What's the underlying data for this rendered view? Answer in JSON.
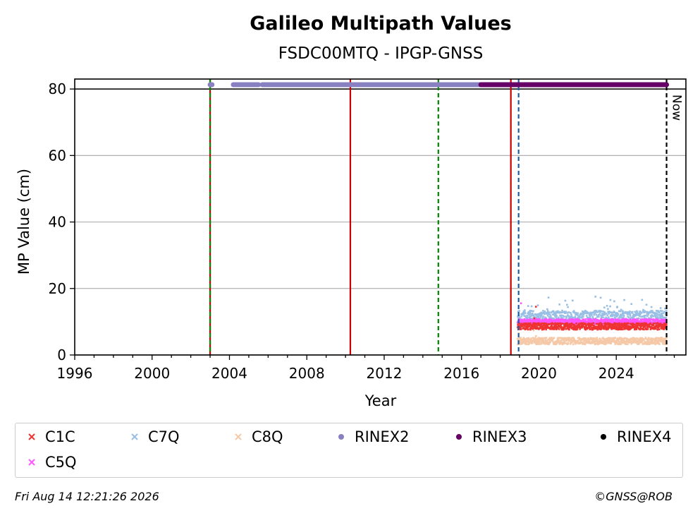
{
  "chart_data": {
    "type": "scatter",
    "title": "Galileo Multipath Values",
    "subtitle": "FSDC00MTQ - IPGP-GNSS",
    "xlabel": "Year",
    "ylabel": "MP Value (cm)",
    "xlim": [
      1996,
      2027.6
    ],
    "ylim": [
      0,
      83
    ],
    "x_ticks": [
      "1996",
      "2000",
      "2004",
      "2008",
      "2012",
      "2016",
      "2020",
      "2024"
    ],
    "y_ticks": [
      "0",
      "20",
      "40",
      "60",
      "80"
    ],
    "grid": "horizontal",
    "legend_position": "bottom",
    "series": [
      {
        "name": "C1C",
        "color": "#ee3333",
        "marker": "x",
        "x_range": [
          2018.9,
          2026.6
        ],
        "y_typical": 8.6,
        "y_spread": 1.0
      },
      {
        "name": "C7Q",
        "color": "#99bfe4",
        "marker": "x",
        "x_range": [
          2018.9,
          2026.6
        ],
        "y_typical": 11.5,
        "y_spread": 1.8
      },
      {
        "name": "C8Q",
        "color": "#f5c9a8",
        "marker": "x",
        "x_range": [
          2018.9,
          2026.6
        ],
        "y_typical": 4.2,
        "y_spread": 1.0
      },
      {
        "name": "C5Q",
        "color": "#ff55ff",
        "marker": "x",
        "x_range": [
          2018.9,
          2026.6
        ],
        "y_typical": 10.0,
        "y_spread": 0.8
      },
      {
        "name": "RINEX2",
        "color": "#8880c0",
        "marker": "o",
        "y": 81.3,
        "segments": [
          [
            2003.0,
            2003.1
          ],
          [
            2004.2,
            2005.5
          ],
          [
            2005.7,
            2017.0
          ]
        ]
      },
      {
        "name": "RINEX3",
        "color": "#660066",
        "marker": "o",
        "y": 81.3,
        "segments": [
          [
            2017.0,
            2026.6
          ]
        ]
      },
      {
        "name": "RINEX4",
        "color": "#000000",
        "marker": "o",
        "y": 81.3,
        "segments": []
      }
    ],
    "vertical_lines": [
      {
        "x": 2003.0,
        "color": "#cc0000",
        "style": "solid"
      },
      {
        "x": 2003.0,
        "color": "#008800",
        "style": "dashed"
      },
      {
        "x": 2010.25,
        "color": "#cc0000",
        "style": "solid"
      },
      {
        "x": 2014.8,
        "color": "#008800",
        "style": "dashed"
      },
      {
        "x": 2018.55,
        "color": "#cc0000",
        "style": "solid"
      },
      {
        "x": 2018.95,
        "color": "#1f5fa8",
        "style": "dashed"
      },
      {
        "x": 2026.6,
        "color": "#000000",
        "style": "dashed",
        "label": "Now"
      }
    ],
    "horizontal_lines": [
      {
        "y": 80,
        "color": "#000000",
        "style": "solid"
      }
    ]
  },
  "legend": [
    {
      "name": "C1C",
      "color": "#ee3333",
      "marker": "x"
    },
    {
      "name": "C7Q",
      "color": "#99bfe4",
      "marker": "x"
    },
    {
      "name": "C8Q",
      "color": "#f5c9a8",
      "marker": "x"
    },
    {
      "name": "RINEX2",
      "color": "#8880c0",
      "marker": "o"
    },
    {
      "name": "RINEX3",
      "color": "#660066",
      "marker": "o"
    },
    {
      "name": "RINEX4",
      "color": "#000000",
      "marker": "o"
    },
    {
      "name": "C5Q",
      "color": "#ff55ff",
      "marker": "x"
    }
  ],
  "footer": {
    "timestamp": "Fri Aug 14 12:21:26 2026",
    "copyright": "©GNSS@ROB"
  }
}
